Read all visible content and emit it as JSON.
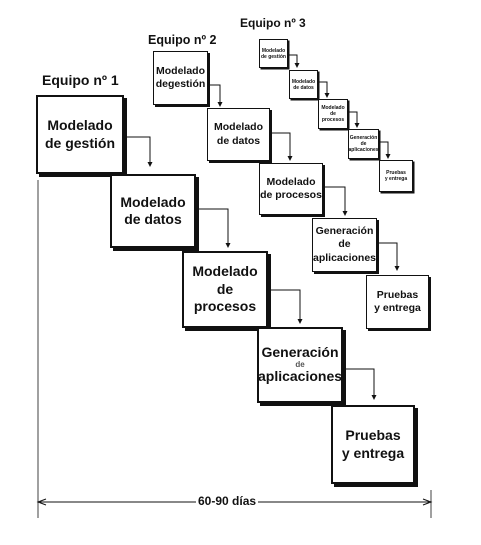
{
  "team1": {
    "label": "Equipo nº 1",
    "boxes": [
      {
        "line1": "Modelado",
        "line2": "de gestión"
      },
      {
        "line1": "Modelado",
        "line2": "de datos"
      },
      {
        "line1": "Modelado",
        "line2": "de procesos"
      },
      {
        "line1": "Generación",
        "line2": "de",
        "line3": "aplicaciones"
      },
      {
        "line1": "Pruebas",
        "line2": "y entrega"
      }
    ]
  },
  "team2": {
    "label": "Equipo nº 2",
    "boxes": [
      {
        "line1": "Modelado",
        "line2": "degestión"
      },
      {
        "line1": "Modelado",
        "line2": "de datos"
      },
      {
        "line1": "Modelado",
        "line2": "de procesos"
      },
      {
        "line1": "Generación",
        "line2": "de",
        "line3": "aplicaciones"
      },
      {
        "line1": "Pruebas",
        "line2": "y entrega"
      }
    ]
  },
  "team3": {
    "label": "Equipo nº 3",
    "boxes": [
      {
        "line1": "Modelado",
        "line2": "de gestión"
      },
      {
        "line1": "Modelado",
        "line2": "de datos"
      },
      {
        "line1": "Modelado",
        "line2": "de procesos"
      },
      {
        "line1": "Generación",
        "line2": "de aplicaciones"
      },
      {
        "line1": "Pruebas",
        "line2": "y entrega"
      }
    ]
  },
  "timeline": {
    "duration": "60-90 días"
  }
}
